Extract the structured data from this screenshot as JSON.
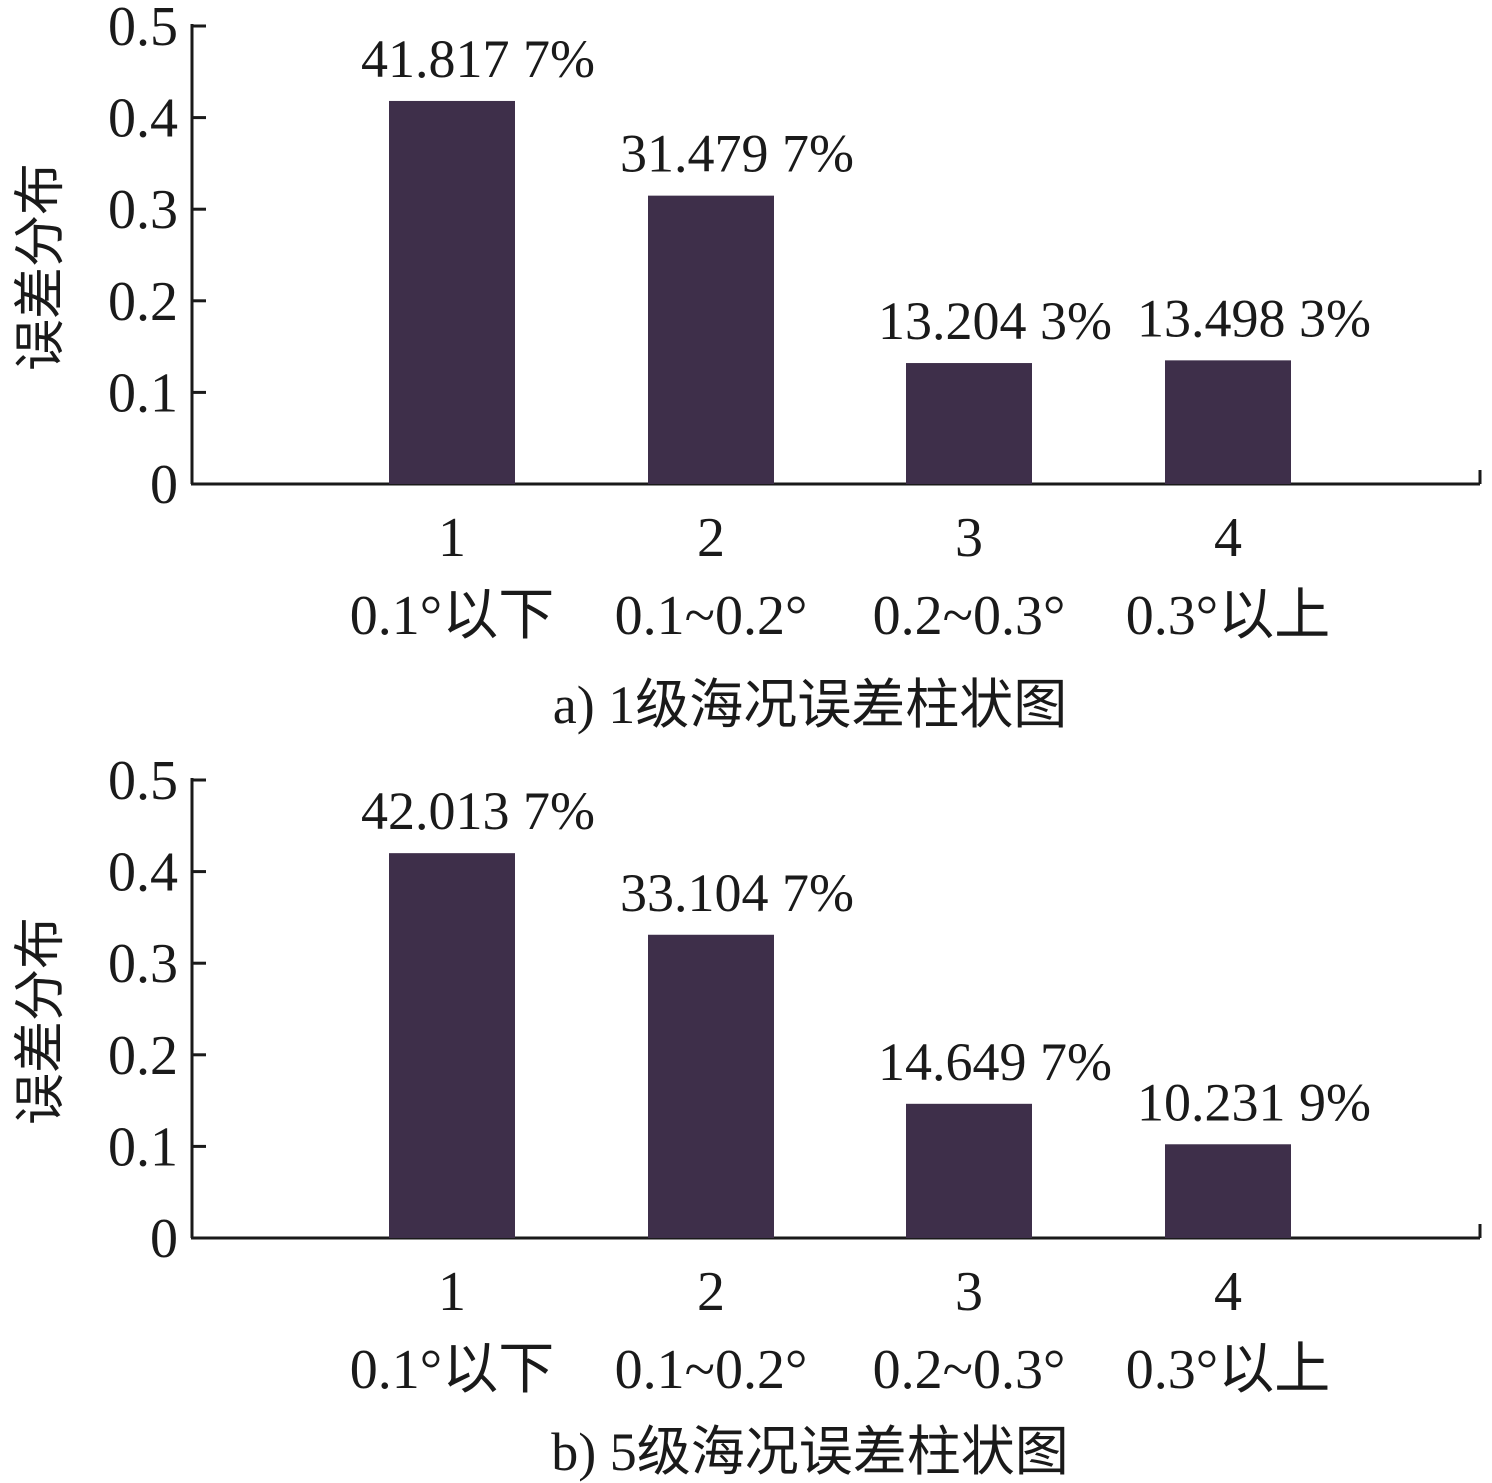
{
  "colors": {
    "bar": "#3e2f4a",
    "axis": "#1a1a1a",
    "text": "#1a1a1a"
  },
  "chart_data": [
    {
      "type": "bar",
      "caption": "a) 1级海况误差柱状图",
      "ylabel": "误差分布",
      "ylim": [
        0,
        0.5
      ],
      "yticks": [
        "0",
        "0.1",
        "0.2",
        "0.3",
        "0.4",
        "0.5"
      ],
      "categories": [
        "1",
        "2",
        "3",
        "4"
      ],
      "category_labels": [
        "0.1°以下",
        "0.1~0.2°",
        "0.2~0.3°",
        "0.3°以上"
      ],
      "values": [
        0.418177,
        0.314797,
        0.132043,
        0.134983
      ],
      "data_labels": [
        "41.817 7%",
        "31.479 7%",
        "13.204 3%",
        "13.498 3%"
      ]
    },
    {
      "type": "bar",
      "caption": "b) 5级海况误差柱状图",
      "ylabel": "误差分布",
      "ylim": [
        0,
        0.5
      ],
      "yticks": [
        "0",
        "0.1",
        "0.2",
        "0.3",
        "0.4",
        "0.5"
      ],
      "categories": [
        "1",
        "2",
        "3",
        "4"
      ],
      "category_labels": [
        "0.1°以下",
        "0.1~0.2°",
        "0.2~0.3°",
        "0.3°以上"
      ],
      "values": [
        0.420137,
        0.331047,
        0.146497,
        0.102319
      ],
      "data_labels": [
        "42.013 7%",
        "33.104 7%",
        "14.649 7%",
        "10.231 9%"
      ]
    }
  ]
}
